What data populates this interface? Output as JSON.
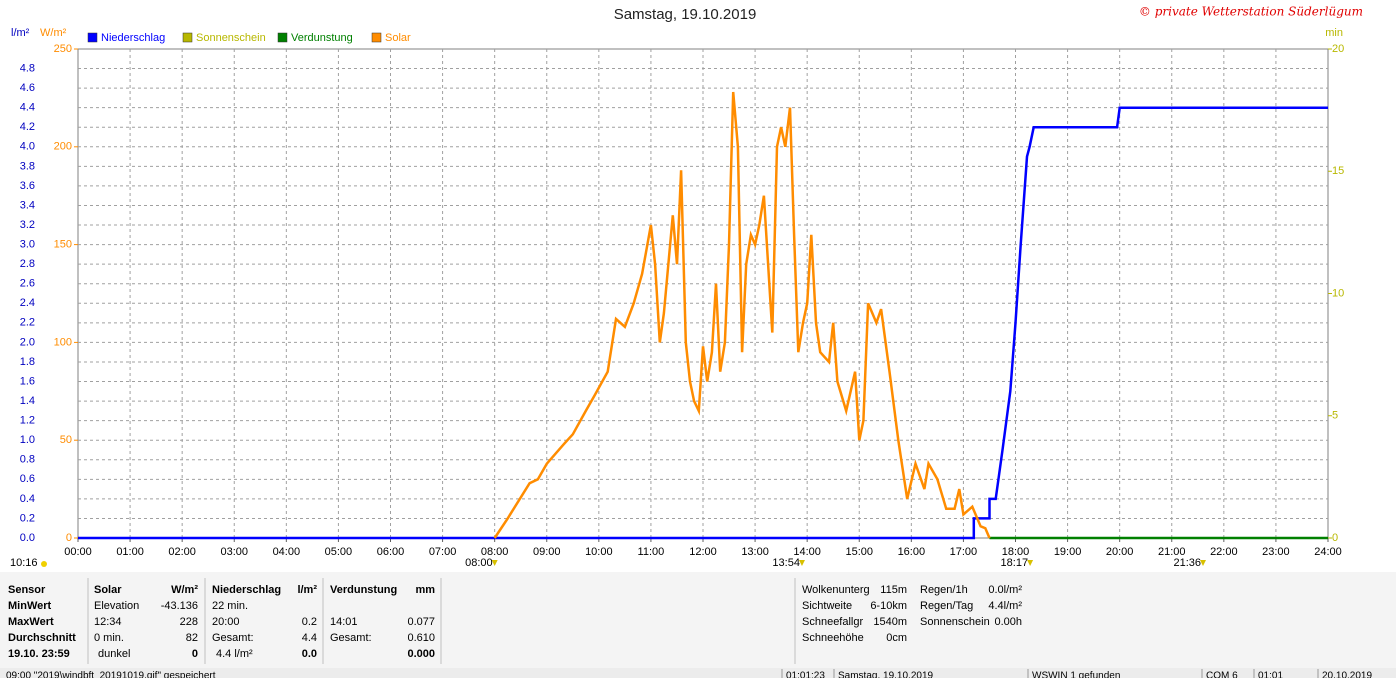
{
  "chart_data": {
    "type": "line",
    "title": "Samstag, 19.10.2019",
    "copyright": "© private Wetterstation Süderlügum",
    "unit_left": "l/m²",
    "unit_mid": "W/m²",
    "unit_right": "min",
    "xlim": [
      0,
      24
    ],
    "xticks": [
      {
        "value": 0,
        "label": "00:00"
      },
      {
        "value": 1,
        "label": "01:00"
      },
      {
        "value": 2,
        "label": "02:00"
      },
      {
        "value": 3,
        "label": "03:00"
      },
      {
        "value": 4,
        "label": "04:00"
      },
      {
        "value": 5,
        "label": "05:00"
      },
      {
        "value": 6,
        "label": "06:00"
      },
      {
        "value": 7,
        "label": "07:00"
      },
      {
        "value": 8,
        "label": "08:00"
      },
      {
        "value": 9,
        "label": "09:00"
      },
      {
        "value": 10,
        "label": "10:00"
      },
      {
        "value": 11,
        "label": "11:00"
      },
      {
        "value": 12,
        "label": "12:00"
      },
      {
        "value": 13,
        "label": "13:00"
      },
      {
        "value": 14,
        "label": "14:00"
      },
      {
        "value": 15,
        "label": "15:00"
      },
      {
        "value": 16,
        "label": "16:00"
      },
      {
        "value": 17,
        "label": "17:00"
      },
      {
        "value": 18,
        "label": "18:00"
      },
      {
        "value": 19,
        "label": "19:00"
      },
      {
        "value": 20,
        "label": "20:00"
      },
      {
        "value": 21,
        "label": "21:00"
      },
      {
        "value": 22,
        "label": "22:00"
      },
      {
        "value": 23,
        "label": "23:00"
      },
      {
        "value": 24,
        "label": "24:00"
      }
    ],
    "ylim": [
      0,
      5
    ],
    "yticks": [
      {
        "value": 0,
        "label": "0.0"
      },
      0.2,
      0.4,
      0.6,
      0.8,
      {
        "value": 1,
        "label": "1.0"
      },
      1.2,
      1.4,
      1.6,
      1.8,
      {
        "value": 2,
        "label": "2.0"
      },
      2.2,
      2.4,
      2.6,
      2.8,
      {
        "value": 3,
        "label": "3.0"
      },
      3.2,
      3.4,
      3.6,
      3.8,
      {
        "value": 4,
        "label": "4.0"
      },
      4.2,
      4.4,
      4.6,
      4.8
    ],
    "wlim": [
      0,
      250
    ],
    "wticks": [
      0,
      50,
      100,
      150,
      200,
      250
    ],
    "y2lim": [
      0,
      20
    ],
    "y2ticks": [
      0,
      5,
      10,
      15,
      20
    ],
    "grid": true,
    "series": [
      {
        "name": "Niederschlag",
        "color": "#0000ff",
        "axis": "y",
        "x": [
          0,
          17.2,
          17.2,
          17.5,
          17.5,
          17.62,
          17.75,
          17.9,
          18.0,
          18.1,
          18.22,
          18.27,
          18.35,
          19.95,
          20.0,
          24
        ],
        "values": [
          0,
          0,
          0.2,
          0.2,
          0.4,
          0.4,
          0.9,
          1.5,
          2.2,
          3.0,
          3.9,
          4.0,
          4.2,
          4.2,
          4.4,
          4.4
        ]
      },
      {
        "name": "Sonnenschein",
        "color": "#b8b800",
        "axis": "y2",
        "x": [],
        "values": []
      },
      {
        "name": "Verdunstung",
        "color": "#008000",
        "axis": "y",
        "x": [
          17.5,
          24
        ],
        "values": [
          0,
          0
        ]
      },
      {
        "name": "Solar",
        "color": "#ff8c00",
        "axis": "w",
        "x": [
          8,
          8.25,
          8.67,
          8.83,
          9,
          9.33,
          9.5,
          9.75,
          9.92,
          10.17,
          10.33,
          10.5,
          10.67,
          10.83,
          11,
          11.08,
          11.17,
          11.25,
          11.42,
          11.5,
          11.58,
          11.67,
          11.75,
          11.83,
          11.92,
          12,
          12.08,
          12.17,
          12.25,
          12.33,
          12.42,
          12.5,
          12.58,
          12.67,
          12.75,
          12.83,
          12.92,
          13,
          13.08,
          13.17,
          13.25,
          13.33,
          13.42,
          13.5,
          13.58,
          13.67,
          13.75,
          13.83,
          13.92,
          14,
          14.08,
          14.17,
          14.25,
          14.42,
          14.5,
          14.58,
          14.75,
          14.92,
          15,
          15.08,
          15.17,
          15.25,
          15.33,
          15.42,
          15.58,
          15.75,
          15.92,
          16.08,
          16.25,
          16.33,
          16.5,
          16.67,
          16.83,
          16.92,
          17,
          17.17,
          17.33,
          17.42,
          17.5
        ],
        "values": [
          0,
          10,
          28,
          30,
          38,
          48,
          53,
          65,
          73,
          85,
          112,
          108,
          120,
          135,
          160,
          140,
          100,
          115,
          165,
          140,
          188,
          100,
          80,
          70,
          65,
          98,
          80,
          95,
          130,
          85,
          100,
          150,
          228,
          200,
          95,
          140,
          155,
          150,
          160,
          175,
          140,
          105,
          200,
          210,
          200,
          220,
          155,
          95,
          110,
          120,
          155,
          110,
          95,
          90,
          110,
          80,
          65,
          85,
          50,
          60,
          120,
          115,
          110,
          117,
          85,
          50,
          20,
          38,
          25,
          38,
          30,
          15,
          15,
          25,
          12,
          16,
          6,
          5,
          0
        ]
      }
    ],
    "annotations": {
      "left": "10:16",
      "marks": [
        {
          "value": 8,
          "label": "08:00"
        },
        {
          "value": 13.9,
          "label": "13:54"
        },
        {
          "value": 18.28,
          "label": "18:17"
        },
        {
          "value": 21.6,
          "label": "21:36"
        }
      ]
    }
  },
  "table": {
    "sensor": [
      "Sensor",
      "MinWert",
      "MaxWert",
      "Durchschnitt",
      "19.10. 23:59"
    ],
    "blocks": [
      {
        "header": [
          "Solar",
          "W/m²"
        ],
        "rows": [
          [
            "Elevation",
            "-43.136"
          ],
          [
            "12:34",
            "228"
          ],
          [
            "0 min.",
            "82"
          ],
          [
            "dunkel",
            "0"
          ]
        ]
      },
      {
        "header": [
          "Niederschlag",
          "l/m²"
        ],
        "rows": [
          [
            "22 min."
          ],
          [
            "20:00",
            "0.2"
          ],
          [
            "Gesamt:",
            "4.4"
          ],
          [
            "4.4 l/m²",
            "0.0"
          ]
        ]
      },
      {
        "header": [
          "Verdunstung",
          "mm"
        ],
        "rows": [
          [],
          [
            "14:01",
            "0.077"
          ],
          [
            "Gesamt:",
            "0.610"
          ],
          [
            "0.000"
          ]
        ]
      }
    ],
    "extra1": [
      [
        "Wolkenunterg",
        "115m"
      ],
      [
        "Sichtweite",
        "6-10km"
      ],
      [
        "Schneefallgr",
        "1540m"
      ],
      [
        "Schneehöhe",
        "0cm"
      ]
    ],
    "extra2": [
      [
        "Regen/1h",
        "0.0l/m²"
      ],
      [
        "Regen/Tag",
        "4.4l/m²"
      ],
      [
        "Sonnenschein",
        "0.00h"
      ]
    ]
  },
  "status": [
    "09:00 \"2019\\windbft_20191019.gif\" gespeichert",
    "01:01:23",
    "Samstag, 19.10.2019",
    "WSWIN 1 gefunden",
    "COM 6",
    "01:01",
    "20.10.2019"
  ]
}
